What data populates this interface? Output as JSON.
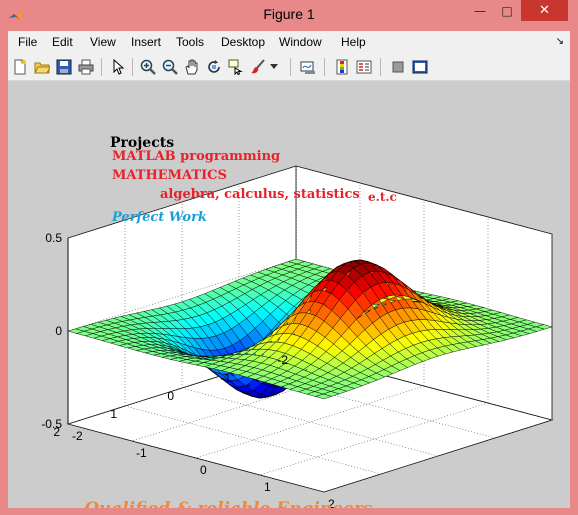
{
  "window": {
    "title": "Figure 1",
    "min_glyph": "—",
    "max_glyph": "□",
    "close_glyph": "✕"
  },
  "menu": {
    "items": [
      "File",
      "Edit",
      "View",
      "Insert",
      "Tools",
      "Desktop",
      "Window",
      "Help"
    ],
    "dock_glyph": "↘"
  },
  "toolbar": {
    "icons": [
      "new-figure-icon",
      "open-file-icon",
      "save-figure-icon",
      "print-figure-icon",
      "edit-plot-arrow-icon",
      "zoom-in-icon",
      "zoom-out-icon",
      "pan-hand-icon",
      "rotate-3d-icon",
      "data-cursor-icon",
      "brush-data-icon",
      "brush-dropdown-icon",
      "link-plot-icon",
      "insert-colorbar-icon",
      "insert-legend-icon",
      "hide-plot-tools-icon",
      "show-plot-tools-icon"
    ]
  },
  "annotations": {
    "projects": "Projects",
    "matlab": "MATLAB programming",
    "mathematics": "MATHEMATICS",
    "topics": "algebra, calculus, statistics",
    "etc": "e.t.c",
    "perfect": "Perfect Work",
    "engineers": "Qualified & reliable Engineers"
  },
  "colors": {
    "red_text": "#e8212a",
    "blue_text": "#1aa0d8",
    "orange_text": "#f08a3a",
    "title_bar": "#e88888",
    "close_button": "#c7372f"
  },
  "chart_data": {
    "type": "surface",
    "function": "z = x * exp(-x^2 - y^2)",
    "x_range": [
      -2,
      2
    ],
    "y_range": [
      -2,
      2
    ],
    "z_range": [
      -0.5,
      0.5
    ],
    "grid": true,
    "colormap": "jet",
    "z_ticks": [
      "0.5",
      "0",
      "-0.5"
    ],
    "x_ticks": [
      "2",
      "1",
      "0",
      "-1",
      "-2"
    ],
    "y_ticks": [
      "-2",
      "-1",
      "0",
      "1",
      "2"
    ]
  }
}
